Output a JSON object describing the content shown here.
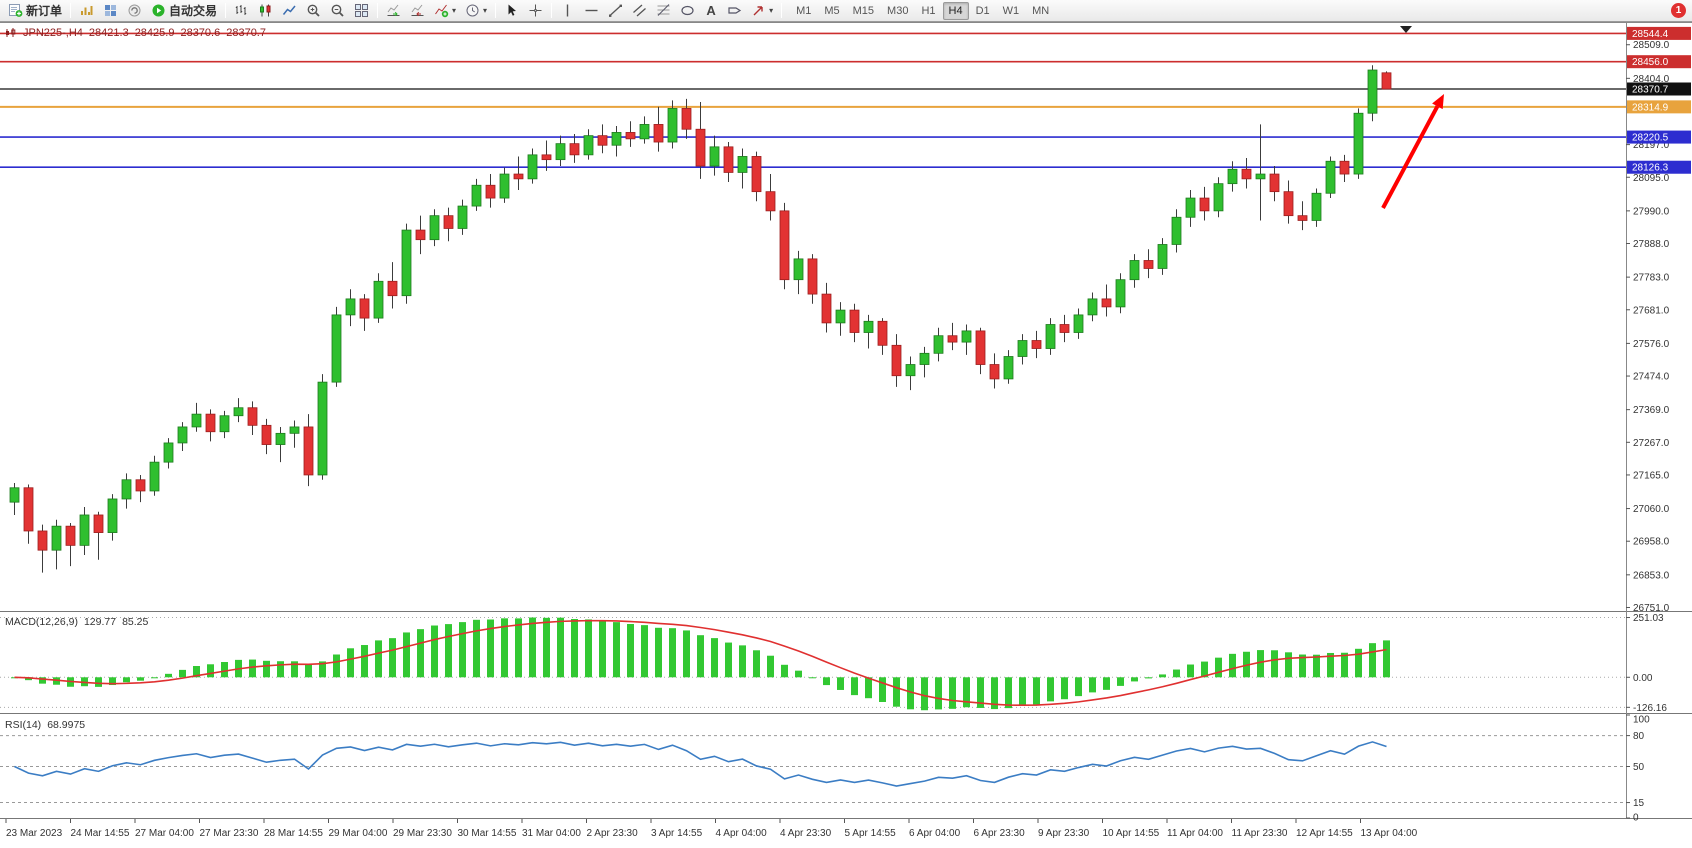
{
  "toolbar": {
    "new_order_label": "新订单",
    "auto_trading_label": "自动交易",
    "text_tool_label": "A",
    "timeframes": [
      "M1",
      "M5",
      "M15",
      "M30",
      "H1",
      "H4",
      "D1",
      "W1",
      "MN"
    ],
    "active_timeframe": "H4",
    "notification_count": "1"
  },
  "icons": {
    "dropdown_caret": "▾",
    "symbol_marker": "▼"
  },
  "symbol_line": {
    "symbol": "JPN225-,H4",
    "open": "28421.3",
    "high": "28425.9",
    "low": "28370.6",
    "close": "28370.7"
  },
  "chart_data": {
    "type": "candlestick",
    "symbol": "JPN225-",
    "timeframe": "H4",
    "grid": false,
    "price_range": [
      26740,
      28580
    ],
    "price_axis_labels": [
      "28509.0",
      "28404.0",
      "28197.0",
      "28095.0",
      "27990.0",
      "27888.0",
      "27783.0",
      "27681.0",
      "27576.0",
      "27474.0",
      "27369.0",
      "27267.0",
      "27165.0",
      "27060.0",
      "26958.0",
      "26853.0",
      "26751.0"
    ],
    "price_lines": [
      {
        "price": 28544.4,
        "color": "#cc2e2e",
        "width": 1.6,
        "tag": "28544.4"
      },
      {
        "price": 28456.0,
        "color": "#cc2e2e",
        "width": 1.6,
        "tag": "28456.0"
      },
      {
        "price": 28370.7,
        "color": "#111111",
        "width": 1.2,
        "tag": "28370.7"
      },
      {
        "price": 28314.9,
        "color": "#e8a33d",
        "width": 2,
        "tag": "28314.9"
      },
      {
        "price": 28220.5,
        "color": "#2d2dd0",
        "width": 1.6,
        "tag": "28220.5"
      },
      {
        "price": 28126.3,
        "color": "#2d2dd0",
        "width": 1.6,
        "tag": "28126.3"
      }
    ],
    "current_price": 28370.7,
    "time_labels": [
      "23 Mar 2023",
      "24 Mar 14:55",
      "27 Mar 04:00",
      "27 Mar 23:30",
      "28 Mar 14:55",
      "29 Mar 04:00",
      "29 Mar 23:30",
      "30 Mar 14:55",
      "31 Mar 04:00",
      "2 Apr 23:30",
      "3 Apr 14:55",
      "4 Apr 04:00",
      "4 Apr 23:30",
      "5 Apr 14:55",
      "6 Apr 04:00",
      "6 Apr 23:30",
      "9 Apr 23:30",
      "10 Apr 14:55",
      "11 Apr 04:00",
      "11 Apr 23:30",
      "12 Apr 14:55",
      "13 Apr 04:00"
    ],
    "candles": [
      [
        27080,
        27140,
        27040,
        27125
      ],
      [
        27125,
        27135,
        26950,
        26990
      ],
      [
        26990,
        27010,
        26860,
        26930
      ],
      [
        26930,
        27025,
        26870,
        27005
      ],
      [
        27005,
        27015,
        26880,
        26945
      ],
      [
        26945,
        27065,
        26915,
        27040
      ],
      [
        27040,
        27050,
        26900,
        26985
      ],
      [
        26985,
        27105,
        26960,
        27090
      ],
      [
        27090,
        27170,
        27060,
        27150
      ],
      [
        27150,
        27165,
        27080,
        27115
      ],
      [
        27115,
        27225,
        27100,
        27205
      ],
      [
        27205,
        27280,
        27185,
        27265
      ],
      [
        27265,
        27330,
        27240,
        27315
      ],
      [
        27315,
        27390,
        27300,
        27355
      ],
      [
        27355,
        27370,
        27270,
        27300
      ],
      [
        27300,
        27365,
        27280,
        27350
      ],
      [
        27350,
        27405,
        27330,
        27375
      ],
      [
        27375,
        27395,
        27290,
        27320
      ],
      [
        27320,
        27340,
        27230,
        27260
      ],
      [
        27260,
        27315,
        27205,
        27295
      ],
      [
        27295,
        27335,
        27250,
        27315
      ],
      [
        27315,
        27355,
        27130,
        27165
      ],
      [
        27165,
        27480,
        27150,
        27455
      ],
      [
        27455,
        27690,
        27440,
        27665
      ],
      [
        27665,
        27745,
        27630,
        27715
      ],
      [
        27715,
        27730,
        27615,
        27655
      ],
      [
        27655,
        27795,
        27640,
        27770
      ],
      [
        27770,
        27830,
        27685,
        27725
      ],
      [
        27725,
        27950,
        27700,
        27930
      ],
      [
        27930,
        27975,
        27855,
        27900
      ],
      [
        27900,
        27995,
        27880,
        27975
      ],
      [
        27975,
        28000,
        27895,
        27935
      ],
      [
        27935,
        28025,
        27915,
        28005
      ],
      [
        28005,
        28090,
        27990,
        28070
      ],
      [
        28070,
        28105,
        28000,
        28030
      ],
      [
        28030,
        28125,
        28015,
        28105
      ],
      [
        28105,
        28160,
        28055,
        28090
      ],
      [
        28090,
        28185,
        28075,
        28165
      ],
      [
        28165,
        28210,
        28115,
        28150
      ],
      [
        28150,
        28225,
        28130,
        28200
      ],
      [
        28200,
        28230,
        28140,
        28165
      ],
      [
        28165,
        28245,
        28150,
        28225
      ],
      [
        28225,
        28260,
        28170,
        28195
      ],
      [
        28195,
        28255,
        28160,
        28235
      ],
      [
        28235,
        28270,
        28190,
        28215
      ],
      [
        28215,
        28285,
        28200,
        28260
      ],
      [
        28260,
        28315,
        28175,
        28205
      ],
      [
        28205,
        28335,
        28185,
        28310
      ],
      [
        28310,
        28340,
        28215,
        28245
      ],
      [
        28245,
        28330,
        28090,
        28130
      ],
      [
        28130,
        28225,
        28100,
        28190
      ],
      [
        28190,
        28205,
        28080,
        28110
      ],
      [
        28110,
        28185,
        28060,
        28160
      ],
      [
        28160,
        28175,
        28020,
        28050
      ],
      [
        28050,
        28105,
        27960,
        27990
      ],
      [
        27990,
        28015,
        27745,
        27775
      ],
      [
        27775,
        27865,
        27730,
        27840
      ],
      [
        27840,
        27855,
        27700,
        27730
      ],
      [
        27730,
        27765,
        27610,
        27640
      ],
      [
        27640,
        27705,
        27600,
        27680
      ],
      [
        27680,
        27700,
        27580,
        27610
      ],
      [
        27610,
        27665,
        27560,
        27645
      ],
      [
        27645,
        27655,
        27540,
        27570
      ],
      [
        27570,
        27605,
        27440,
        27475
      ],
      [
        27475,
        27535,
        27430,
        27510
      ],
      [
        27510,
        27565,
        27470,
        27545
      ],
      [
        27545,
        27625,
        27520,
        27600
      ],
      [
        27600,
        27640,
        27555,
        27580
      ],
      [
        27580,
        27635,
        27540,
        27615
      ],
      [
        27615,
        27625,
        27480,
        27510
      ],
      [
        27510,
        27545,
        27435,
        27465
      ],
      [
        27465,
        27555,
        27450,
        27535
      ],
      [
        27535,
        27605,
        27510,
        27585
      ],
      [
        27585,
        27615,
        27530,
        27560
      ],
      [
        27560,
        27655,
        27540,
        27635
      ],
      [
        27635,
        27665,
        27580,
        27610
      ],
      [
        27610,
        27685,
        27590,
        27665
      ],
      [
        27665,
        27735,
        27645,
        27715
      ],
      [
        27715,
        27760,
        27660,
        27690
      ],
      [
        27690,
        27795,
        27670,
        27775
      ],
      [
        27775,
        27855,
        27750,
        27835
      ],
      [
        27835,
        27870,
        27780,
        27810
      ],
      [
        27810,
        27905,
        27790,
        27885
      ],
      [
        27885,
        27995,
        27860,
        27970
      ],
      [
        27970,
        28055,
        27940,
        28030
      ],
      [
        28030,
        28065,
        27960,
        27990
      ],
      [
        27990,
        28095,
        27970,
        28075
      ],
      [
        28075,
        28145,
        28050,
        28120
      ],
      [
        28120,
        28155,
        28060,
        28090
      ],
      [
        28090,
        28260,
        27960,
        28105
      ],
      [
        28105,
        28130,
        28020,
        28050
      ],
      [
        28050,
        28085,
        27950,
        27975
      ],
      [
        27975,
        28020,
        27930,
        27960
      ],
      [
        27960,
        28060,
        27940,
        28045
      ],
      [
        28045,
        28160,
        28030,
        28145
      ],
      [
        28145,
        28165,
        28080,
        28105
      ],
      [
        28105,
        28310,
        28090,
        28295
      ],
      [
        28295,
        28445,
        28270,
        28430
      ],
      [
        28421.3,
        28425.9,
        28370.6,
        28370.7
      ]
    ],
    "indicators": {
      "macd": {
        "name": "MACD(12,26,9)",
        "params": [
          12,
          26,
          9
        ],
        "values": [
          "129.77",
          "85.25"
        ],
        "axis_labels": [
          "251.03",
          "0.00",
          "-126.16"
        ],
        "histogram_color": "#32c832",
        "signal_color": "#e03030"
      },
      "rsi": {
        "name": "RSI(14)",
        "period": 14,
        "value": "68.9975",
        "axis_labels": [
          "100",
          "80",
          "50",
          "15",
          "0"
        ],
        "dashed_levels": [
          80,
          50,
          15
        ],
        "line_color": "#3b7dc4"
      }
    },
    "annotations": {
      "arrow": {
        "from": [
          1383,
          208
        ],
        "to": [
          1444,
          94
        ],
        "color": "#ff0000",
        "width": 4
      }
    }
  }
}
